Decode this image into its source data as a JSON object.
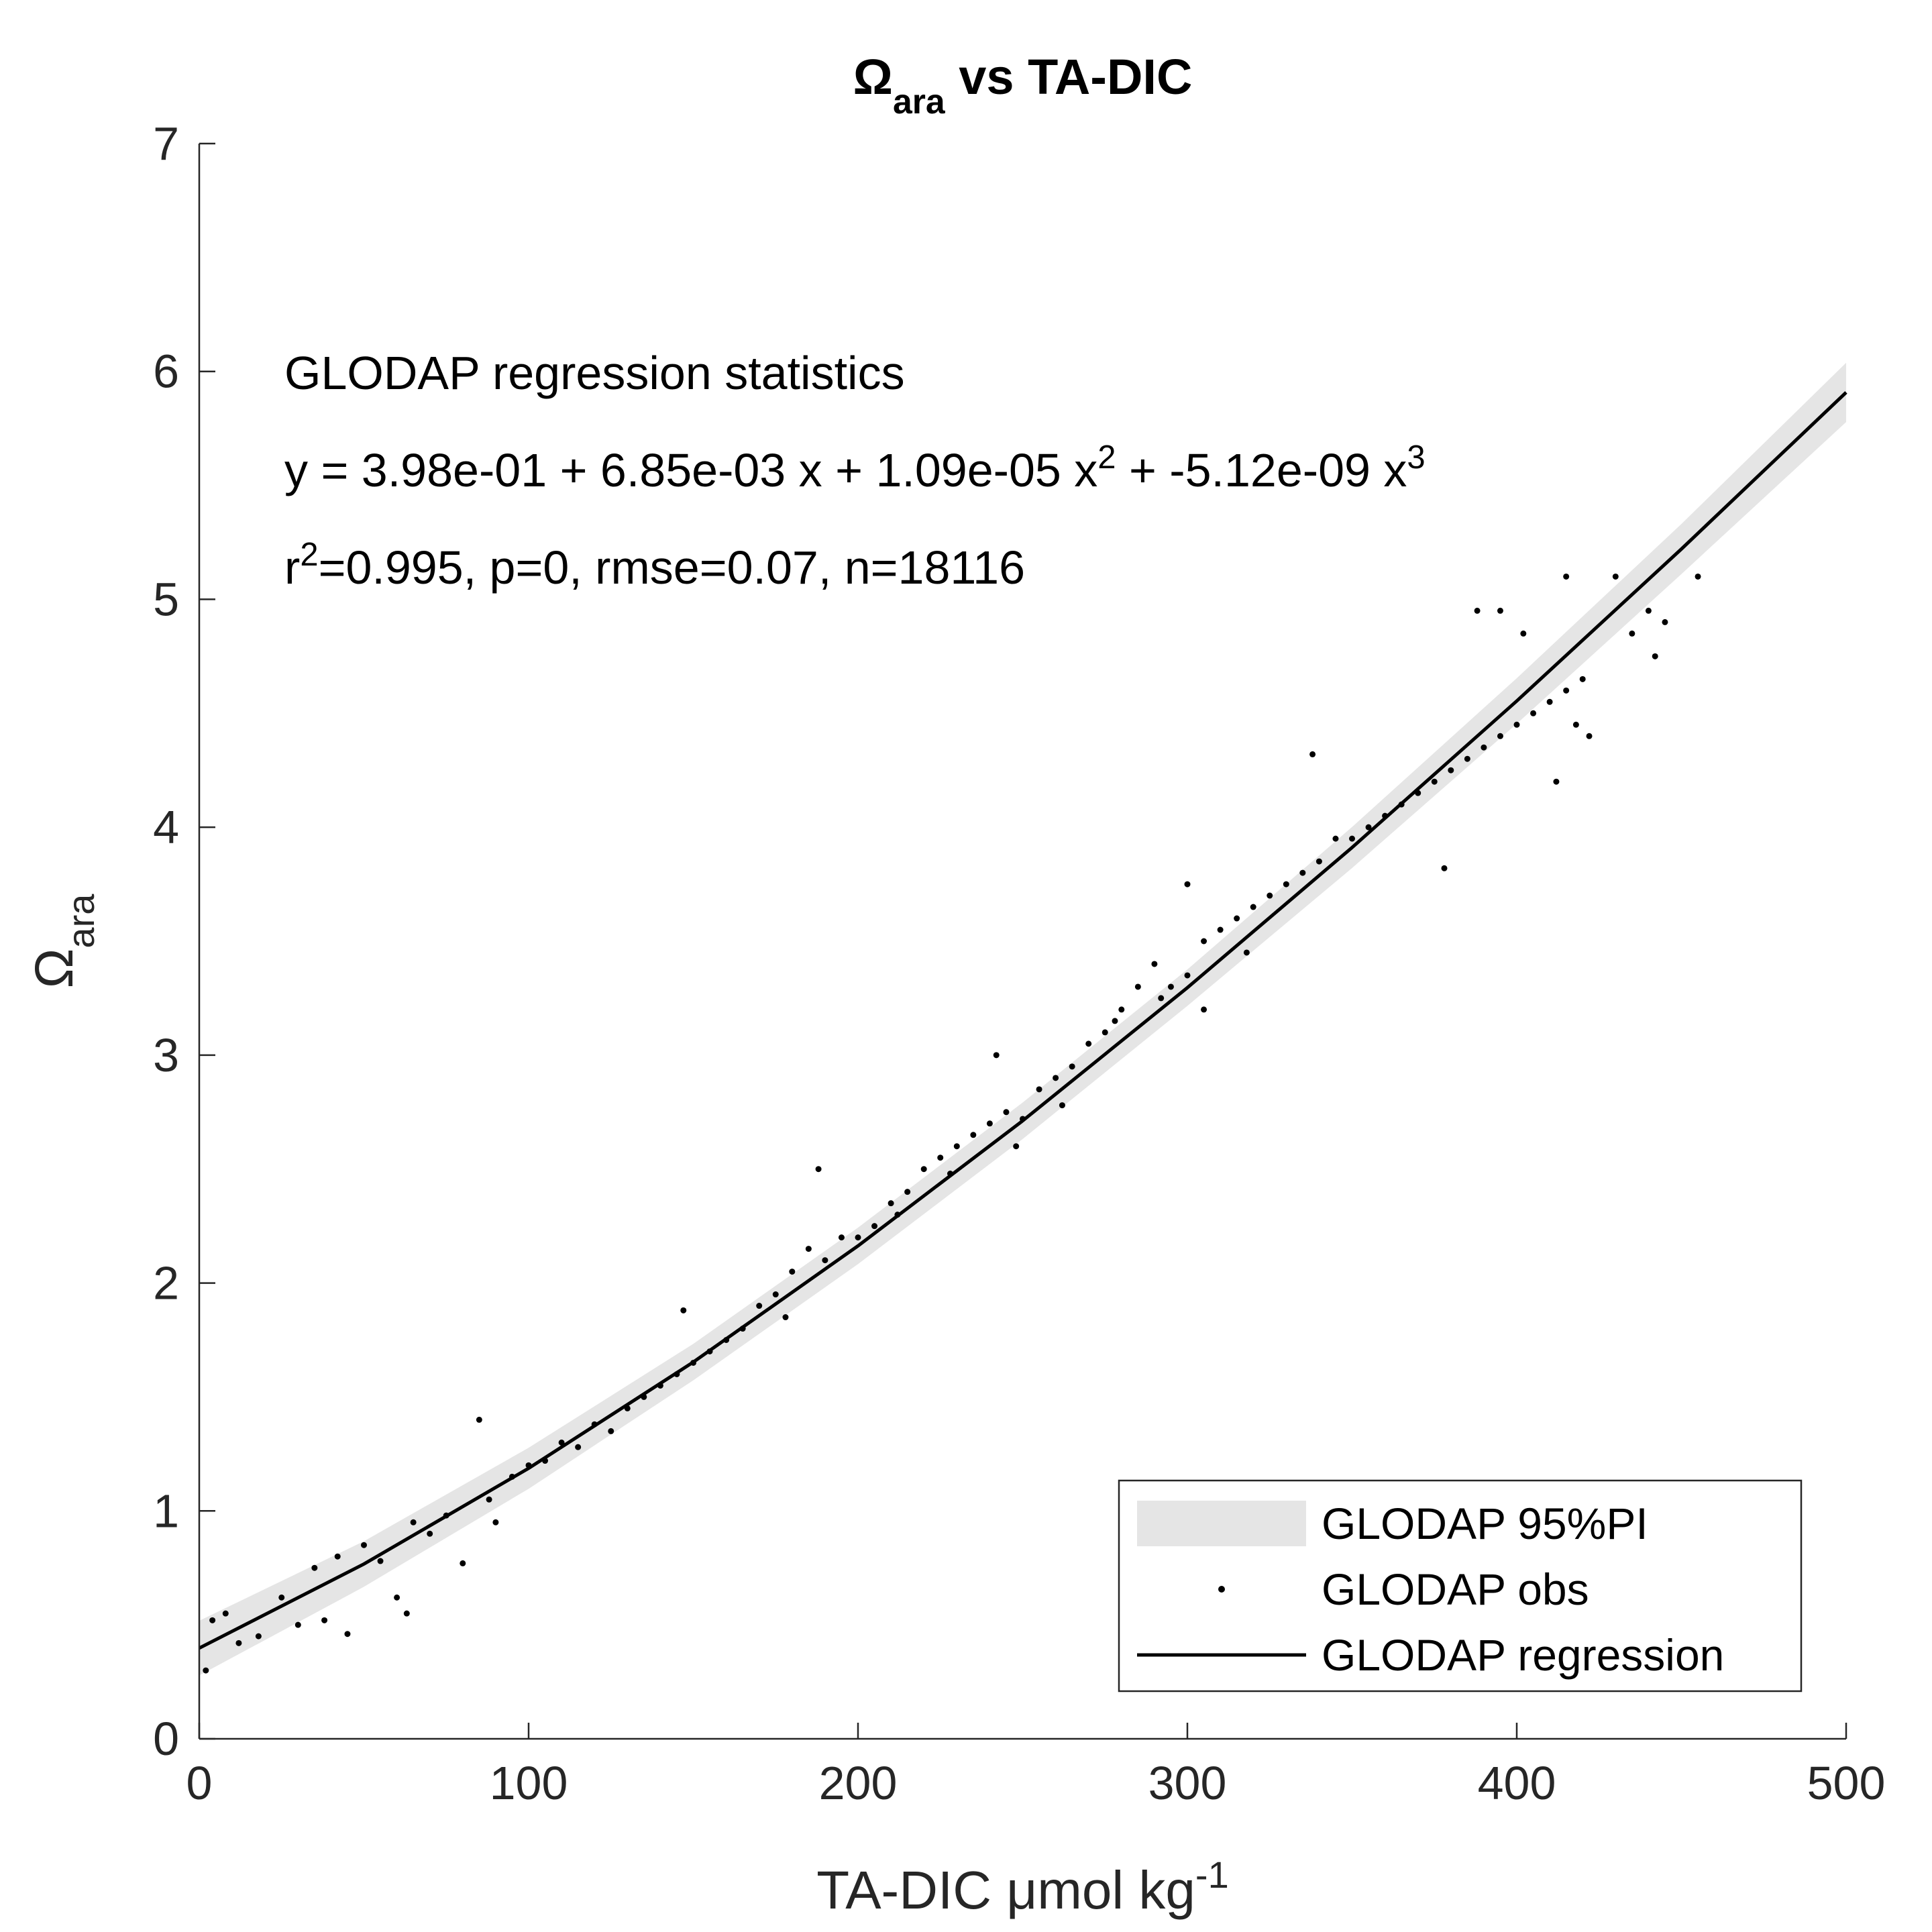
{
  "chart_data": {
    "type": "scatter",
    "title": [
      {
        "text": "Ω"
      },
      {
        "text": "ara",
        "sub": true
      },
      {
        "text": " vs TA-DIC"
      }
    ],
    "xlabel": [
      {
        "text": "TA-DIC μmol kg"
      },
      {
        "text": "-1",
        "sup": true
      }
    ],
    "ylabel": [
      {
        "text": "Ω"
      },
      {
        "text": "ara",
        "sub": true
      }
    ],
    "annotations": [
      [
        {
          "text": "GLODAP regression statistics"
        }
      ],
      [
        {
          "text": "y = 3.98e-01 + 6.85e-03 x + 1.09e-05 x"
        },
        {
          "text": "2",
          "sup": true
        },
        {
          "text": " + -5.12e-09 x"
        },
        {
          "text": "3",
          "sup": true
        }
      ],
      [
        {
          "text": "r"
        },
        {
          "text": "2",
          "sup": true
        },
        {
          "text": "=0.995, p=0, rmse=0.07, n=18116"
        }
      ]
    ],
    "xlim": [
      0,
      500
    ],
    "xticks": [
      0,
      100,
      200,
      300,
      400,
      500
    ],
    "ylim": [
      0,
      7
    ],
    "yticks": [
      0,
      1,
      2,
      3,
      4,
      5,
      6,
      7
    ],
    "legend": "lower right",
    "series": [
      {
        "name": "GLODAP 95%PI",
        "kind": "band",
        "color": "#e5e5e5",
        "x": [
          0,
          50,
          100,
          150,
          200,
          250,
          300,
          350,
          400,
          450,
          500
        ],
        "lower": [
          0.278,
          0.667,
          1.097,
          1.573,
          2.083,
          2.632,
          3.216,
          3.821,
          4.454,
          5.111,
          5.778
        ],
        "upper": [
          0.518,
          0.867,
          1.277,
          1.733,
          2.243,
          2.792,
          3.376,
          4.001,
          4.654,
          5.331,
          6.038
        ]
      },
      {
        "name": "GLODAP obs",
        "kind": "points",
        "color": "#000000",
        "x": [
          2,
          4,
          8,
          12,
          18,
          25,
          30,
          35,
          38,
          42,
          45,
          50,
          55,
          60,
          63,
          65,
          70,
          75,
          80,
          85,
          88,
          90,
          95,
          100,
          105,
          110,
          115,
          120,
          125,
          130,
          135,
          140,
          145,
          147,
          150,
          155,
          160,
          165,
          170,
          175,
          178,
          180,
          185,
          188,
          190,
          195,
          200,
          205,
          210,
          215,
          220,
          225,
          230,
          235,
          240,
          245,
          250,
          242,
          255,
          260,
          265,
          270,
          275,
          280,
          285,
          290,
          295,
          300,
          305,
          310,
          300,
          315,
          320,
          325,
          330,
          335,
          340,
          338,
          345,
          350,
          355,
          360,
          365,
          370,
          375,
          380,
          378,
          385,
          390,
          395,
          400,
          405,
          410,
          415,
          420,
          412,
          402,
          388,
          395,
          418,
          422,
          415,
          430,
          440,
          445,
          455,
          435,
          442,
          248,
          262,
          278,
          292,
          305,
          318,
          228,
          212
        ],
        "y": [
          0.3,
          0.52,
          0.55,
          0.42,
          0.45,
          0.62,
          0.5,
          0.75,
          0.52,
          0.8,
          0.46,
          0.85,
          0.78,
          0.62,
          0.55,
          0.95,
          0.9,
          0.98,
          0.77,
          1.4,
          1.05,
          0.95,
          1.15,
          1.2,
          1.22,
          1.3,
          1.28,
          1.38,
          1.35,
          1.45,
          1.5,
          1.55,
          1.6,
          1.88,
          1.65,
          1.7,
          1.75,
          1.8,
          1.9,
          1.95,
          1.85,
          2.05,
          2.15,
          2.5,
          2.1,
          2.2,
          2.2,
          2.25,
          2.35,
          2.4,
          2.5,
          2.55,
          2.6,
          2.65,
          2.7,
          2.75,
          2.72,
          3.0,
          2.85,
          2.9,
          2.95,
          3.05,
          3.1,
          3.2,
          3.3,
          3.4,
          3.3,
          3.35,
          3.5,
          3.55,
          3.75,
          3.6,
          3.65,
          3.7,
          3.75,
          3.8,
          3.85,
          4.32,
          3.95,
          3.95,
          4.0,
          4.05,
          4.1,
          4.15,
          4.2,
          4.25,
          3.82,
          4.3,
          4.35,
          4.4,
          4.45,
          4.5,
          4.55,
          4.6,
          4.65,
          4.2,
          4.85,
          4.95,
          4.95,
          4.45,
          4.4,
          5.1,
          5.1,
          4.95,
          4.9,
          5.1,
          4.85,
          4.75,
          2.6,
          2.78,
          3.15,
          3.25,
          3.2,
          3.45,
          2.48,
          2.3
        ]
      },
      {
        "name": "GLODAP regression",
        "kind": "line",
        "color": "#000000",
        "x": [
          0,
          50,
          100,
          150,
          200,
          250,
          300,
          350,
          400,
          450,
          500
        ],
        "y": [
          0.398,
          0.767,
          1.187,
          1.653,
          2.163,
          2.712,
          3.296,
          3.911,
          4.554,
          5.221,
          5.908
        ]
      }
    ]
  }
}
